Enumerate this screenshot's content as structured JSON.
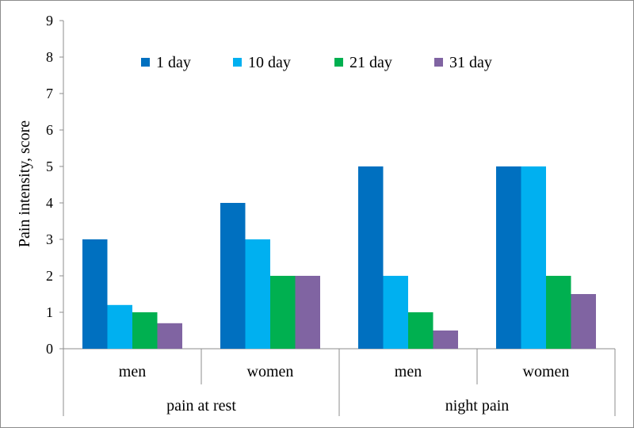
{
  "chart_data": {
    "type": "bar",
    "title": "",
    "ylabel": "Pain  intensity, score",
    "xlabel": "",
    "ylim": [
      0,
      9
    ],
    "yticks": [
      0,
      1,
      2,
      3,
      4,
      5,
      6,
      7,
      8,
      9
    ],
    "grid": false,
    "legend_position": "top",
    "groups": [
      {
        "label": "pain at rest",
        "categories": [
          "men",
          "women"
        ]
      },
      {
        "label": "night pain",
        "categories": [
          "men",
          "women"
        ]
      }
    ],
    "categories": [
      "men",
      "women",
      "men",
      "women"
    ],
    "series": [
      {
        "name": "1 day",
        "color": "#0070c0",
        "values": [
          3,
          4,
          5,
          5
        ]
      },
      {
        "name": "10 day",
        "color": "#00b0f0",
        "values": [
          1.2,
          3,
          2,
          5
        ]
      },
      {
        "name": "21 day",
        "color": "#00b050",
        "values": [
          1,
          2,
          1,
          2
        ]
      },
      {
        "name": "31 day",
        "color": "#8064a2",
        "values": [
          0.7,
          2,
          0.5,
          1.5
        ]
      }
    ]
  }
}
